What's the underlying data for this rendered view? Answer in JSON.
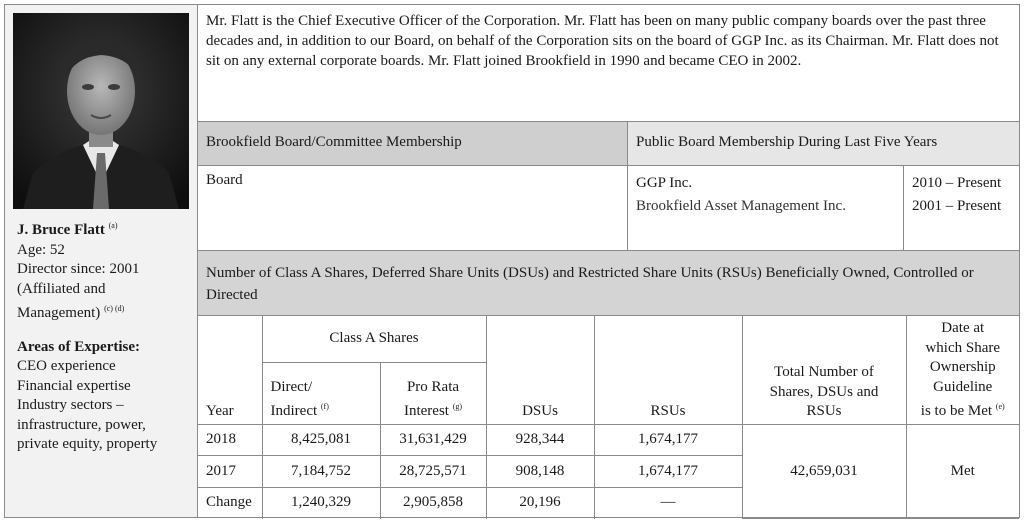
{
  "profile": {
    "name": "J. Bruce Flatt",
    "name_note": "(a)",
    "age": "Age: 52",
    "director_since": "Director since: 2001",
    "affiliation_line1": "(Affiliated and",
    "affiliation_line2": "Management)",
    "affiliation_notes": "(c) (d)",
    "expertise_heading": "Areas of Expertise:",
    "expertise": [
      "CEO experience",
      "Financial expertise",
      "Industry sectors –",
      "infrastructure, power,",
      "private equity, property"
    ]
  },
  "bio": "Mr. Flatt is the Chief Executive Officer of the Corporation. Mr. Flatt has been on many public company boards over the past three decades and, in addition to our Board, on behalf of the Corporation sits on the board of GGP Inc. as its Chairman. Mr. Flatt does not sit on any external corporate boards. Mr. Flatt joined Brookfield in 1990 and became CEO in 2002.",
  "membership": {
    "board_heading": "Brookfield Board/Committee Membership",
    "public_heading": "Public Board Membership During Last Five Years",
    "board_value": "Board",
    "public_boards": [
      {
        "name": "GGP Inc.",
        "period": "2010 – Present"
      },
      {
        "name": "Brookfield Asset Management Inc.",
        "period": "2001 – Present"
      }
    ]
  },
  "shares": {
    "heading": "Number of Class A Shares, Deferred Share Units (DSUs) and Restricted Share Units (RSUs) Beneficially Owned, Controlled or Directed",
    "class_a_heading": "Class A Shares",
    "col_year": "Year",
    "col_direct_line1": "Direct/",
    "col_direct_line2": "Indirect",
    "col_direct_note": "(f)",
    "col_prorata_line1": "Pro Rata",
    "col_prorata_line2": "Interest",
    "col_prorata_note": "(g)",
    "col_dsus": "DSUs",
    "col_rsus": "RSUs",
    "col_total_line1": "Total Number of",
    "col_total_line2": "Shares, DSUs and",
    "col_total_line3": "RSUs",
    "col_date_line1": "Date at",
    "col_date_line2": "which Share",
    "col_date_line3": "Ownership",
    "col_date_line4": "Guideline",
    "col_date_line5": "is to be Met",
    "col_date_note": "(e)",
    "rows": [
      {
        "year": "2018",
        "direct": "8,425,081",
        "prorata": "31,631,429",
        "dsus": "928,344",
        "rsus": "1,674,177"
      },
      {
        "year": "2017",
        "direct": "7,184,752",
        "prorata": "28,725,571",
        "dsus": "908,148",
        "rsus": "1,674,177"
      },
      {
        "year": "Change",
        "direct": "1,240,329",
        "prorata": "2,905,858",
        "dsus": "20,196",
        "rsus": "—"
      }
    ],
    "total": "42,659,031",
    "guideline_status": "Met"
  }
}
